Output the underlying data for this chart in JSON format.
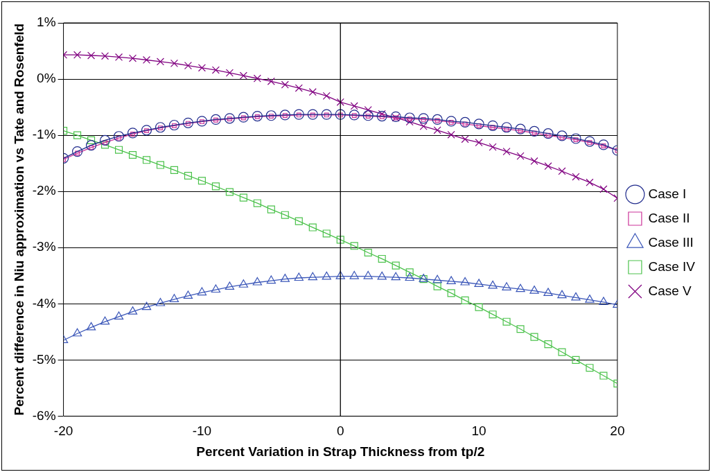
{
  "chart_data": {
    "type": "line",
    "xlabel": "Percent Variation in Strap Thickness from tp/2",
    "ylabel": "Percent difference in Niu approximation vs Tate and Rosenfeld",
    "x": [
      -20,
      -19,
      -18,
      -17,
      -16,
      -15,
      -14,
      -13,
      -12,
      -11,
      -10,
      -9,
      -8,
      -7,
      -6,
      -5,
      -4,
      -3,
      -2,
      -1,
      0,
      1,
      2,
      3,
      4,
      5,
      6,
      7,
      8,
      9,
      10,
      11,
      12,
      13,
      14,
      15,
      16,
      17,
      18,
      19,
      20
    ],
    "series": [
      {
        "name": "Case I",
        "color": "#1f2a8c",
        "marker": "circle",
        "values": [
          -1.41,
          -1.29,
          -1.18,
          -1.09,
          -1.02,
          -0.96,
          -0.91,
          -0.86,
          -0.82,
          -0.78,
          -0.75,
          -0.72,
          -0.7,
          -0.68,
          -0.66,
          -0.65,
          -0.64,
          -0.63,
          -0.63,
          -0.63,
          -0.63,
          -0.64,
          -0.65,
          -0.66,
          -0.67,
          -0.69,
          -0.7,
          -0.72,
          -0.75,
          -0.77,
          -0.8,
          -0.83,
          -0.86,
          -0.89,
          -0.93,
          -0.97,
          -1.01,
          -1.06,
          -1.11,
          -1.17,
          -1.27
        ]
      },
      {
        "name": "Case II",
        "color": "#cc3399",
        "marker": "square",
        "values": [
          -1.43,
          -1.32,
          -1.22,
          -1.13,
          -1.05,
          -0.98,
          -0.92,
          -0.87,
          -0.83,
          -0.79,
          -0.76,
          -0.73,
          -0.71,
          -0.69,
          -0.67,
          -0.66,
          -0.65,
          -0.64,
          -0.64,
          -0.64,
          -0.64,
          -0.65,
          -0.66,
          -0.67,
          -0.69,
          -0.71,
          -0.72,
          -0.74,
          -0.77,
          -0.8,
          -0.83,
          -0.86,
          -0.89,
          -0.92,
          -0.96,
          -1.0,
          -1.04,
          -1.08,
          -1.13,
          -1.19,
          -1.27
        ]
      },
      {
        "name": "Case III",
        "color": "#3a56b8",
        "marker": "triangle",
        "values": [
          -4.65,
          -4.53,
          -4.42,
          -4.32,
          -4.23,
          -4.14,
          -4.06,
          -3.99,
          -3.92,
          -3.86,
          -3.8,
          -3.75,
          -3.7,
          -3.66,
          -3.62,
          -3.59,
          -3.56,
          -3.54,
          -3.53,
          -3.52,
          -3.51,
          -3.51,
          -3.51,
          -3.52,
          -3.53,
          -3.54,
          -3.56,
          -3.58,
          -3.6,
          -3.62,
          -3.65,
          -3.68,
          -3.71,
          -3.74,
          -3.77,
          -3.81,
          -3.85,
          -3.89,
          -3.93,
          -3.97,
          -4.02
        ]
      },
      {
        "name": "Case IV",
        "color": "#4cc24c",
        "marker": "square",
        "values": [
          -0.92,
          -1.0,
          -1.09,
          -1.17,
          -1.26,
          -1.35,
          -1.44,
          -1.53,
          -1.62,
          -1.72,
          -1.81,
          -1.91,
          -2.01,
          -2.11,
          -2.21,
          -2.32,
          -2.42,
          -2.53,
          -2.64,
          -2.75,
          -2.86,
          -2.97,
          -3.09,
          -3.2,
          -3.32,
          -3.44,
          -3.56,
          -3.69,
          -3.81,
          -3.94,
          -4.06,
          -4.19,
          -4.32,
          -4.45,
          -4.59,
          -4.72,
          -4.86,
          -5.0,
          -5.14,
          -5.28,
          -5.42
        ]
      },
      {
        "name": "Case V",
        "color": "#800080",
        "marker": "cross",
        "values": [
          0.43,
          0.43,
          0.42,
          0.41,
          0.39,
          0.37,
          0.34,
          0.31,
          0.28,
          0.24,
          0.2,
          0.16,
          0.11,
          0.06,
          0.01,
          -0.04,
          -0.1,
          -0.16,
          -0.23,
          -0.3,
          -0.41,
          -0.48,
          -0.55,
          -0.62,
          -0.69,
          -0.76,
          -0.84,
          -0.91,
          -0.99,
          -1.07,
          -1.13,
          -1.21,
          -1.29,
          -1.37,
          -1.46,
          -1.55,
          -1.64,
          -1.74,
          -1.84,
          -1.96,
          -2.12
        ]
      }
    ],
    "xlim": [
      -20,
      20
    ],
    "xticks": [
      -20,
      -10,
      0,
      10,
      20
    ],
    "ylim": [
      -6,
      1
    ],
    "yticks": [
      {
        "value": -6,
        "label": "-6%"
      },
      {
        "value": -5,
        "label": "-5%"
      },
      {
        "value": -4,
        "label": "-4%"
      },
      {
        "value": -3,
        "label": "-3%"
      },
      {
        "value": -2,
        "label": "-2%"
      },
      {
        "value": -1,
        "label": "-1%"
      },
      {
        "value": 0,
        "label": "0%"
      },
      {
        "value": 1,
        "label": "1%"
      }
    ],
    "ref_lines": [
      {
        "axis": "x",
        "value": 0,
        "color": "#000000"
      }
    ],
    "grid": "y",
    "legend": "right",
    "line_style": "solid"
  }
}
